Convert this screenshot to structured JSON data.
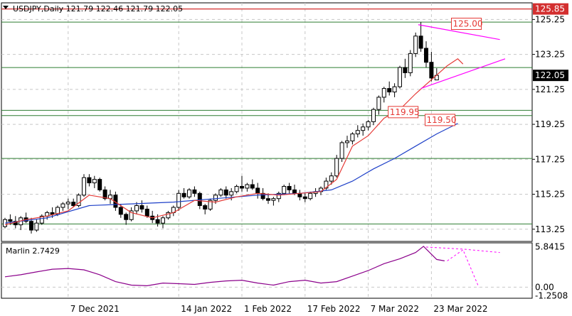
{
  "header": {
    "symbol_info": "USDJPY,Daily  121.79 122.46 121.79 122.05"
  },
  "colors": {
    "background": "#ffffff",
    "grid": "#c8c8c8",
    "level_line": "#2e7d32",
    "resistance_line": "#d32f2f",
    "ma_red": "#e53935",
    "ma_blue": "#1e40c8",
    "marlin": "#8b008b",
    "triangle": "#ff00ff",
    "price_label_bg": "#000000",
    "price_label_text": "#ffffff",
    "callout_border": "#e53935",
    "callout_text": "#e53935"
  },
  "chart_data": {
    "type": "candlestick",
    "price_axis": {
      "ticks": [
        "125.25",
        "123.25",
        "121.25",
        "119.25",
        "117.25",
        "115.25",
        "113.25"
      ],
      "tick_values": [
        125.25,
        123.25,
        121.25,
        119.25,
        117.25,
        115.25,
        113.25
      ],
      "range": [
        112.55,
        126.2
      ]
    },
    "date_axis": {
      "ticks": [
        "7 Dec 2021",
        "14 Jan 2022",
        "1 Feb 2022",
        "17 Feb 2022",
        "7 Mar 2022",
        "23 Mar 2022"
      ],
      "tick_bars": [
        12,
        33,
        45,
        57,
        69,
        81
      ]
    },
    "current_price": "122.05",
    "current_price_value": 122.05,
    "top_line_label": "125.85",
    "top_line_value": 125.85,
    "horizontal_levels": [
      125.1,
      122.5,
      120.05,
      119.75,
      117.3,
      113.55
    ],
    "callouts": [
      {
        "text": "125.00",
        "value": 125.0,
        "bar": 87.5
      },
      {
        "text": "119.95",
        "value": 119.95,
        "bar": 75.5
      },
      {
        "text": "119.50",
        "value": 119.5,
        "bar": 82.5
      }
    ],
    "triangle_lines": [
      {
        "from": [
          78.5,
          124.95
        ],
        "to": [
          94,
          124.1
        ]
      },
      {
        "from": [
          79,
          121.3
        ],
        "to": [
          95,
          123.0
        ]
      }
    ],
    "candles": [
      [
        113.4,
        113.9,
        113.3,
        113.8
      ],
      [
        113.8,
        114.1,
        113.5,
        113.7
      ],
      [
        113.7,
        114.0,
        113.3,
        113.5
      ],
      [
        113.5,
        114.0,
        113.2,
        113.9
      ],
      [
        113.9,
        114.2,
        113.6,
        113.7
      ],
      [
        113.7,
        113.9,
        113.0,
        113.2
      ],
      [
        113.2,
        113.8,
        113.1,
        113.6
      ],
      [
        113.6,
        114.1,
        113.5,
        114.0
      ],
      [
        114.0,
        114.3,
        113.8,
        114.2
      ],
      [
        114.2,
        114.5,
        113.9,
        114.1
      ],
      [
        114.1,
        114.6,
        114.0,
        114.5
      ],
      [
        114.5,
        114.8,
        114.3,
        114.7
      ],
      [
        114.7,
        115.0,
        114.4,
        114.8
      ],
      [
        114.8,
        115.0,
        114.5,
        114.6
      ],
      [
        114.6,
        115.3,
        114.5,
        115.2
      ],
      [
        115.2,
        116.4,
        115.1,
        116.2
      ],
      [
        116.2,
        116.4,
        115.7,
        115.9
      ],
      [
        115.9,
        116.3,
        115.6,
        116.1
      ],
      [
        116.1,
        116.2,
        115.4,
        115.5
      ],
      [
        115.5,
        115.7,
        114.9,
        115.0
      ],
      [
        115.0,
        115.5,
        114.7,
        115.2
      ],
      [
        115.2,
        115.4,
        114.3,
        114.5
      ],
      [
        114.5,
        114.7,
        113.9,
        114.1
      ],
      [
        114.1,
        114.2,
        113.5,
        113.8
      ],
      [
        113.8,
        114.5,
        113.7,
        114.3
      ],
      [
        114.3,
        114.8,
        114.1,
        114.6
      ],
      [
        114.6,
        114.9,
        114.2,
        114.4
      ],
      [
        114.4,
        114.6,
        113.9,
        114.0
      ],
      [
        114.0,
        114.3,
        113.6,
        113.8
      ],
      [
        113.8,
        114.1,
        113.4,
        113.6
      ],
      [
        113.6,
        114.0,
        113.3,
        113.9
      ],
      [
        113.9,
        114.3,
        113.8,
        114.2
      ],
      [
        114.2,
        114.6,
        114.0,
        114.5
      ],
      [
        114.5,
        115.5,
        114.3,
        115.3
      ],
      [
        115.3,
        115.6,
        115.0,
        115.1
      ],
      [
        115.1,
        115.6,
        115.0,
        115.5
      ],
      [
        115.5,
        115.7,
        115.1,
        115.3
      ],
      [
        115.3,
        115.4,
        114.4,
        114.6
      ],
      [
        114.6,
        114.7,
        114.1,
        114.4
      ],
      [
        114.4,
        115.0,
        114.3,
        114.9
      ],
      [
        114.9,
        115.3,
        114.7,
        115.2
      ],
      [
        115.2,
        115.6,
        115.1,
        115.5
      ],
      [
        115.5,
        115.7,
        115.0,
        115.2
      ],
      [
        115.2,
        115.6,
        114.9,
        115.4
      ],
      [
        115.4,
        115.8,
        115.3,
        115.7
      ],
      [
        115.7,
        116.3,
        115.4,
        115.6
      ],
      [
        115.6,
        115.9,
        115.4,
        115.8
      ],
      [
        115.8,
        116.1,
        115.5,
        115.6
      ],
      [
        115.6,
        115.9,
        115.0,
        115.3
      ],
      [
        115.3,
        115.6,
        114.9,
        115.0
      ],
      [
        115.0,
        115.3,
        114.7,
        114.9
      ],
      [
        114.9,
        115.1,
        114.6,
        115.0
      ],
      [
        115.0,
        115.4,
        114.8,
        115.3
      ],
      [
        115.3,
        115.8,
        115.2,
        115.7
      ],
      [
        115.7,
        115.9,
        115.3,
        115.5
      ],
      [
        115.5,
        115.8,
        115.2,
        115.3
      ],
      [
        115.3,
        115.5,
        114.9,
        115.1
      ],
      [
        115.1,
        115.3,
        114.8,
        115.0
      ],
      [
        115.0,
        115.4,
        114.9,
        115.3
      ],
      [
        115.3,
        115.6,
        115.1,
        115.4
      ],
      [
        115.4,
        115.7,
        115.2,
        115.6
      ],
      [
        115.6,
        116.2,
        115.5,
        116.0
      ],
      [
        116.0,
        116.5,
        115.8,
        116.3
      ],
      [
        116.3,
        117.5,
        116.2,
        117.3
      ],
      [
        117.3,
        118.3,
        117.1,
        118.2
      ],
      [
        118.2,
        118.6,
        117.9,
        118.3
      ],
      [
        118.3,
        118.8,
        118.1,
        118.7
      ],
      [
        118.7,
        119.2,
        118.5,
        118.9
      ],
      [
        118.9,
        119.3,
        118.6,
        119.1
      ],
      [
        119.1,
        119.5,
        118.9,
        119.4
      ],
      [
        119.4,
        120.2,
        119.2,
        120.1
      ],
      [
        120.1,
        120.9,
        119.8,
        120.8
      ],
      [
        120.8,
        121.4,
        120.5,
        121.3
      ],
      [
        121.3,
        121.7,
        120.9,
        121.1
      ],
      [
        121.1,
        121.6,
        120.8,
        121.4
      ],
      [
        121.4,
        122.6,
        121.3,
        122.5
      ],
      [
        122.5,
        123.0,
        121.9,
        122.2
      ],
      [
        122.2,
        123.5,
        122.0,
        123.3
      ],
      [
        123.3,
        124.5,
        123.1,
        124.3
      ],
      [
        124.3,
        125.1,
        123.4,
        123.6
      ],
      [
        123.6,
        124.0,
        122.5,
        122.8
      ],
      [
        122.8,
        123.4,
        121.7,
        121.9
      ],
      [
        121.79,
        122.46,
        121.79,
        122.05
      ]
    ],
    "ma_red": [
      [
        0,
        113.5
      ],
      [
        4,
        113.8
      ],
      [
        8,
        114.0
      ],
      [
        12,
        114.3
      ],
      [
        16,
        115.2
      ],
      [
        20,
        115.0
      ],
      [
        24,
        114.2
      ],
      [
        28,
        113.9
      ],
      [
        32,
        114.2
      ],
      [
        36,
        114.9
      ],
      [
        40,
        114.8
      ],
      [
        44,
        115.1
      ],
      [
        48,
        115.3
      ],
      [
        52,
        115.2
      ],
      [
        56,
        115.3
      ],
      [
        60,
        115.4
      ],
      [
        63,
        116.1
      ],
      [
        66,
        118.0
      ],
      [
        69,
        118.6
      ],
      [
        72,
        119.6
      ],
      [
        75,
        120.1
      ],
      [
        78,
        121.0
      ],
      [
        81,
        121.8
      ],
      [
        84,
        122.6
      ],
      [
        86,
        123.0
      ],
      [
        87,
        122.7
      ]
    ],
    "ma_blue": [
      [
        0,
        113.6
      ],
      [
        8,
        113.9
      ],
      [
        16,
        114.6
      ],
      [
        24,
        114.7
      ],
      [
        32,
        114.8
      ],
      [
        40,
        115.0
      ],
      [
        48,
        115.2
      ],
      [
        56,
        115.3
      ],
      [
        62,
        115.5
      ],
      [
        66,
        116.0
      ],
      [
        70,
        116.7
      ],
      [
        74,
        117.3
      ],
      [
        78,
        118.0
      ],
      [
        82,
        118.7
      ],
      [
        86,
        119.3
      ]
    ],
    "indicator": {
      "label": "Marlin 2.7429",
      "ticks": [
        "5.8415",
        "0.00",
        "-1.2508"
      ],
      "tick_values": [
        5.8415,
        0.0,
        -1.2508
      ],
      "range": [
        -1.6,
        6.4
      ],
      "values": [
        [
          0,
          1.5
        ],
        [
          3,
          1.8
        ],
        [
          6,
          2.2
        ],
        [
          9,
          2.6
        ],
        [
          12,
          2.7
        ],
        [
          15,
          2.5
        ],
        [
          18,
          1.8
        ],
        [
          21,
          0.8
        ],
        [
          24,
          0.3
        ],
        [
          27,
          0.2
        ],
        [
          30,
          0.6
        ],
        [
          33,
          0.5
        ],
        [
          36,
          0.4
        ],
        [
          39,
          0.7
        ],
        [
          42,
          0.9
        ],
        [
          45,
          1.0
        ],
        [
          48,
          0.6
        ],
        [
          51,
          0.3
        ],
        [
          54,
          0.8
        ],
        [
          57,
          1.0
        ],
        [
          60,
          0.6
        ],
        [
          63,
          0.8
        ],
        [
          66,
          1.6
        ],
        [
          69,
          2.4
        ],
        [
          72,
          3.4
        ],
        [
          75,
          4.1
        ],
        [
          78,
          5.0
        ],
        [
          79.5,
          5.9
        ],
        [
          82,
          4.0
        ],
        [
          83.5,
          3.8
        ]
      ],
      "dashed": [
        [
          [
            80,
            5.8
          ],
          [
            87,
            5.5
          ],
          [
            94,
            5.0
          ]
        ],
        [
          [
            84,
            3.8
          ],
          [
            87,
            5.4
          ],
          [
            90,
            0.0
          ]
        ]
      ]
    }
  }
}
